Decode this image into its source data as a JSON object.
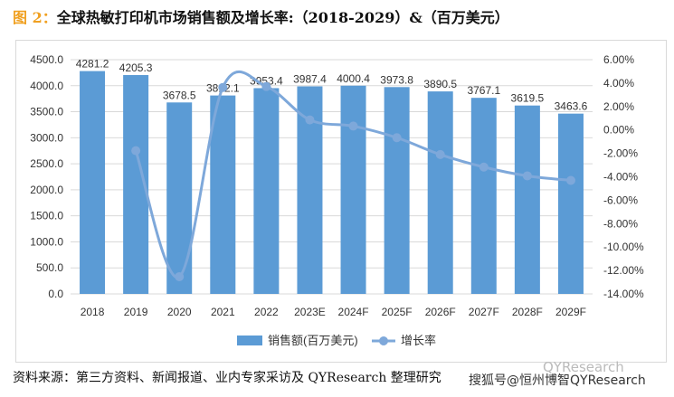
{
  "title": {
    "fig_label": "图 2：",
    "text": "全球热敏打印机市场销售额及增长率:（2018-2029）&（百万美元）"
  },
  "footer": {
    "source": "资料来源：第三方资料、新闻报道、业内专家采访及 QYResearch 整理研究",
    "watermark_top": "QYResearch",
    "watermark_bottom": "搜狐号@恒州博智QYResearch"
  },
  "chart_data": {
    "type": "bar+line",
    "categories": [
      "2018",
      "2019",
      "2020",
      "2021",
      "2022",
      "2023E",
      "2024F",
      "2025F",
      "2026F",
      "2027F",
      "2028F",
      "2029F"
    ],
    "series": [
      {
        "name": "销售额(百万美元)",
        "type": "bar",
        "axis": "left",
        "color": "#5b9bd5",
        "values": [
          4281.2,
          4205.3,
          3678.5,
          3812.1,
          3953.4,
          3987.4,
          4000.4,
          3973.8,
          3890.5,
          3767.1,
          3619.5,
          3463.6
        ]
      },
      {
        "name": "增长率",
        "type": "line",
        "axis": "right",
        "color": "#7ea8da",
        "values": [
          null,
          -1.77,
          -12.53,
          3.63,
          3.71,
          0.86,
          0.33,
          -0.66,
          -2.1,
          -3.17,
          -3.92,
          -4.31
        ]
      }
    ],
    "ylim": [
      0,
      4500
    ],
    "yticks": [
      "0.0",
      "500.0",
      "1000.0",
      "1500.0",
      "2000.0",
      "2500.0",
      "3000.0",
      "3500.0",
      "4000.0",
      "4500.0"
    ],
    "y2lim": [
      -14,
      6
    ],
    "y2ticks": [
      "-14.00%",
      "-12.00%",
      "-10.00%",
      "-8.00%",
      "-6.00%",
      "-4.00%",
      "-2.00%",
      "0.00%",
      "2.00%",
      "4.00%",
      "6.00%"
    ],
    "legend": "bottom",
    "grid": true
  }
}
